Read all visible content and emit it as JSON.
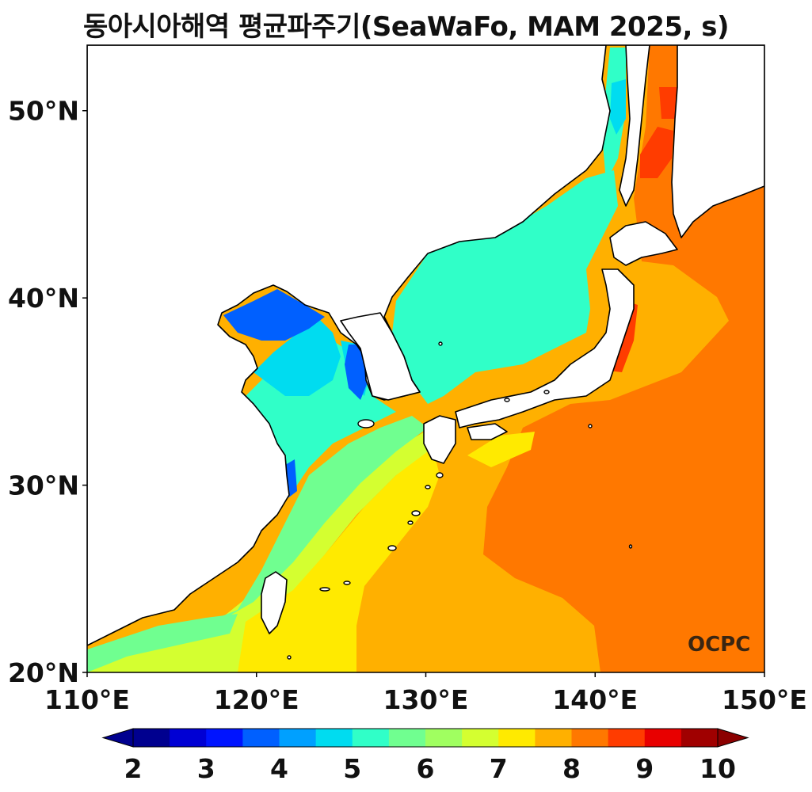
{
  "title": "동아시아해역 평균파주기(SeaWaFo, MAM 2025, s)",
  "logo_text": "OCPC",
  "map": {
    "region": "East Asian seas",
    "lon_range": [
      110,
      150
    ],
    "lat_range": [
      20,
      53.5
    ],
    "lon_ticks": [
      {
        "value": 110,
        "label": "110°E"
      },
      {
        "value": 120,
        "label": "120°E"
      },
      {
        "value": 130,
        "label": "130°E"
      },
      {
        "value": 140,
        "label": "140°E"
      },
      {
        "value": 150,
        "label": "150°E"
      }
    ],
    "lat_ticks": [
      {
        "value": 20,
        "label": "20°N"
      },
      {
        "value": 30,
        "label": "30°N"
      },
      {
        "value": 40,
        "label": "40°N"
      },
      {
        "value": 50,
        "label": "50°N"
      }
    ],
    "land_color": "#ffffff",
    "coastline_color": "#000000"
  },
  "colorbar": {
    "min": 2,
    "max": 10,
    "extend": "both",
    "tick_labels": [
      "2",
      "3",
      "4",
      "5",
      "6",
      "7",
      "8",
      "9",
      "10"
    ],
    "colors": [
      "#00008f",
      "#0000d4",
      "#0014ff",
      "#0060ff",
      "#00a0ff",
      "#00dcf0",
      "#30ffc8",
      "#70ff90",
      "#a0ff60",
      "#d4ff30",
      "#ffea00",
      "#ffb000",
      "#ff7800",
      "#ff3c00",
      "#e80000",
      "#a00000"
    ],
    "under_color": "#00008f",
    "over_color": "#8b0000"
  }
}
